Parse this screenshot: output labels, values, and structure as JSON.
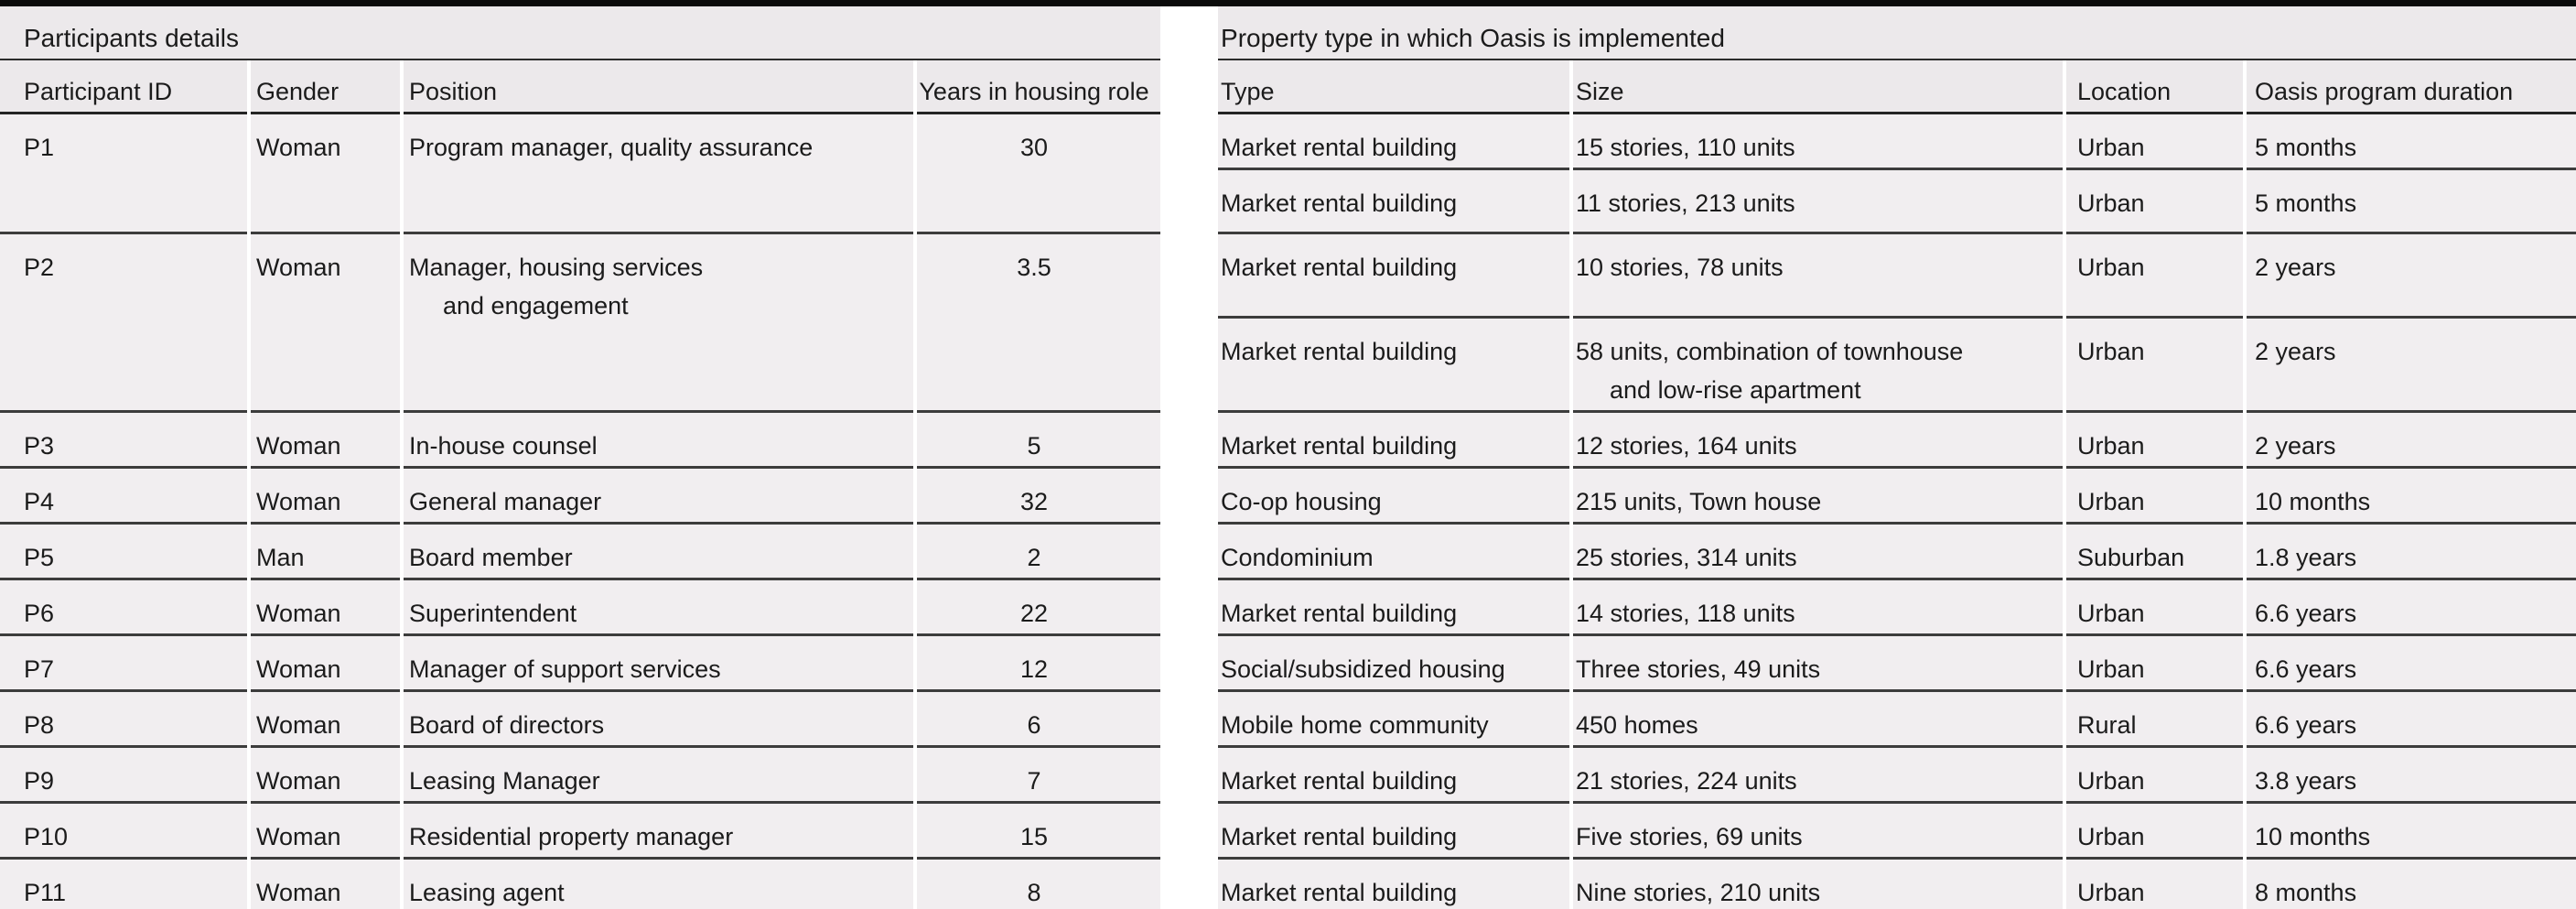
{
  "table": {
    "group_headers": {
      "left": "Participants details",
      "right": "Property type in which Oasis is implemented"
    },
    "columns": {
      "left": [
        "Participant ID",
        "Gender",
        "Position",
        "Years in housing role"
      ],
      "right": [
        "Type",
        "Size",
        "Location",
        "Oasis program duration"
      ]
    },
    "participants": [
      {
        "id": "P1",
        "gender": "Woman",
        "position": [
          "Program manager, quality assurance"
        ],
        "years": "30",
        "properties": [
          {
            "type": "Market rental building",
            "size": [
              "15 stories, 110 units"
            ],
            "location": "Urban",
            "duration": "5 months"
          },
          {
            "type": "Market rental building",
            "size": [
              "11 stories, 213 units"
            ],
            "location": "Urban",
            "duration": "5 months"
          }
        ]
      },
      {
        "id": "P2",
        "gender": "Woman",
        "position": [
          "Manager, housing services",
          "and engagement"
        ],
        "years": "3.5",
        "properties": [
          {
            "type": "Market rental building",
            "size": [
              "10 stories, 78 units"
            ],
            "location": "Urban",
            "duration": "2 years"
          },
          {
            "type": "Market rental building",
            "size": [
              "58 units, combination of townhouse",
              "and low-rise apartment"
            ],
            "location": "Urban",
            "duration": "2 years"
          }
        ]
      },
      {
        "id": "P3",
        "gender": "Woman",
        "position": [
          "In-house counsel"
        ],
        "years": "5",
        "properties": [
          {
            "type": "Market rental building",
            "size": [
              "12 stories, 164 units"
            ],
            "location": "Urban",
            "duration": "2 years"
          }
        ]
      },
      {
        "id": "P4",
        "gender": "Woman",
        "position": [
          "General manager"
        ],
        "years": "32",
        "properties": [
          {
            "type": "Co-op housing",
            "size": [
              "215 units, Town house"
            ],
            "location": "Urban",
            "duration": "10 months"
          }
        ]
      },
      {
        "id": "P5",
        "gender": "Man",
        "position": [
          "Board member"
        ],
        "years": "2",
        "properties": [
          {
            "type": "Condominium",
            "size": [
              "25 stories, 314 units"
            ],
            "location": "Suburban",
            "duration": "1.8 years"
          }
        ]
      },
      {
        "id": "P6",
        "gender": "Woman",
        "position": [
          "Superintendent"
        ],
        "years": "22",
        "properties": [
          {
            "type": "Market rental building",
            "size": [
              "14 stories, 118 units"
            ],
            "location": "Urban",
            "duration": "6.6 years"
          }
        ]
      },
      {
        "id": "P7",
        "gender": "Woman",
        "position": [
          "Manager of support services"
        ],
        "years": "12",
        "properties": [
          {
            "type": "Social/subsidized housing",
            "size": [
              "Three stories, 49 units"
            ],
            "location": "Urban",
            "duration": "6.6 years"
          }
        ]
      },
      {
        "id": "P8",
        "gender": "Woman",
        "position": [
          "Board of directors"
        ],
        "years": "6",
        "properties": [
          {
            "type": "Mobile home community",
            "size": [
              "450 homes"
            ],
            "location": "Rural",
            "duration": "6.6 years"
          }
        ]
      },
      {
        "id": "P9",
        "gender": "Woman",
        "position": [
          "Leasing Manager"
        ],
        "years": "7",
        "properties": [
          {
            "type": "Market rental building",
            "size": [
              "21 stories, 224 units"
            ],
            "location": "Urban",
            "duration": "3.8 years"
          }
        ]
      },
      {
        "id": "P10",
        "gender": "Woman",
        "position": [
          "Residential property manager"
        ],
        "years": "15",
        "properties": [
          {
            "type": "Market rental building",
            "size": [
              "Five stories, 69 units"
            ],
            "location": "Urban",
            "duration": "10 months"
          }
        ]
      },
      {
        "id": "P11",
        "gender": "Woman",
        "position": [
          "Leasing agent"
        ],
        "years": "8",
        "properties": [
          {
            "type": "Market rental building",
            "size": [
              "Nine stories, 210 units"
            ],
            "location": "Urban",
            "duration": "8 months"
          }
        ]
      }
    ]
  }
}
